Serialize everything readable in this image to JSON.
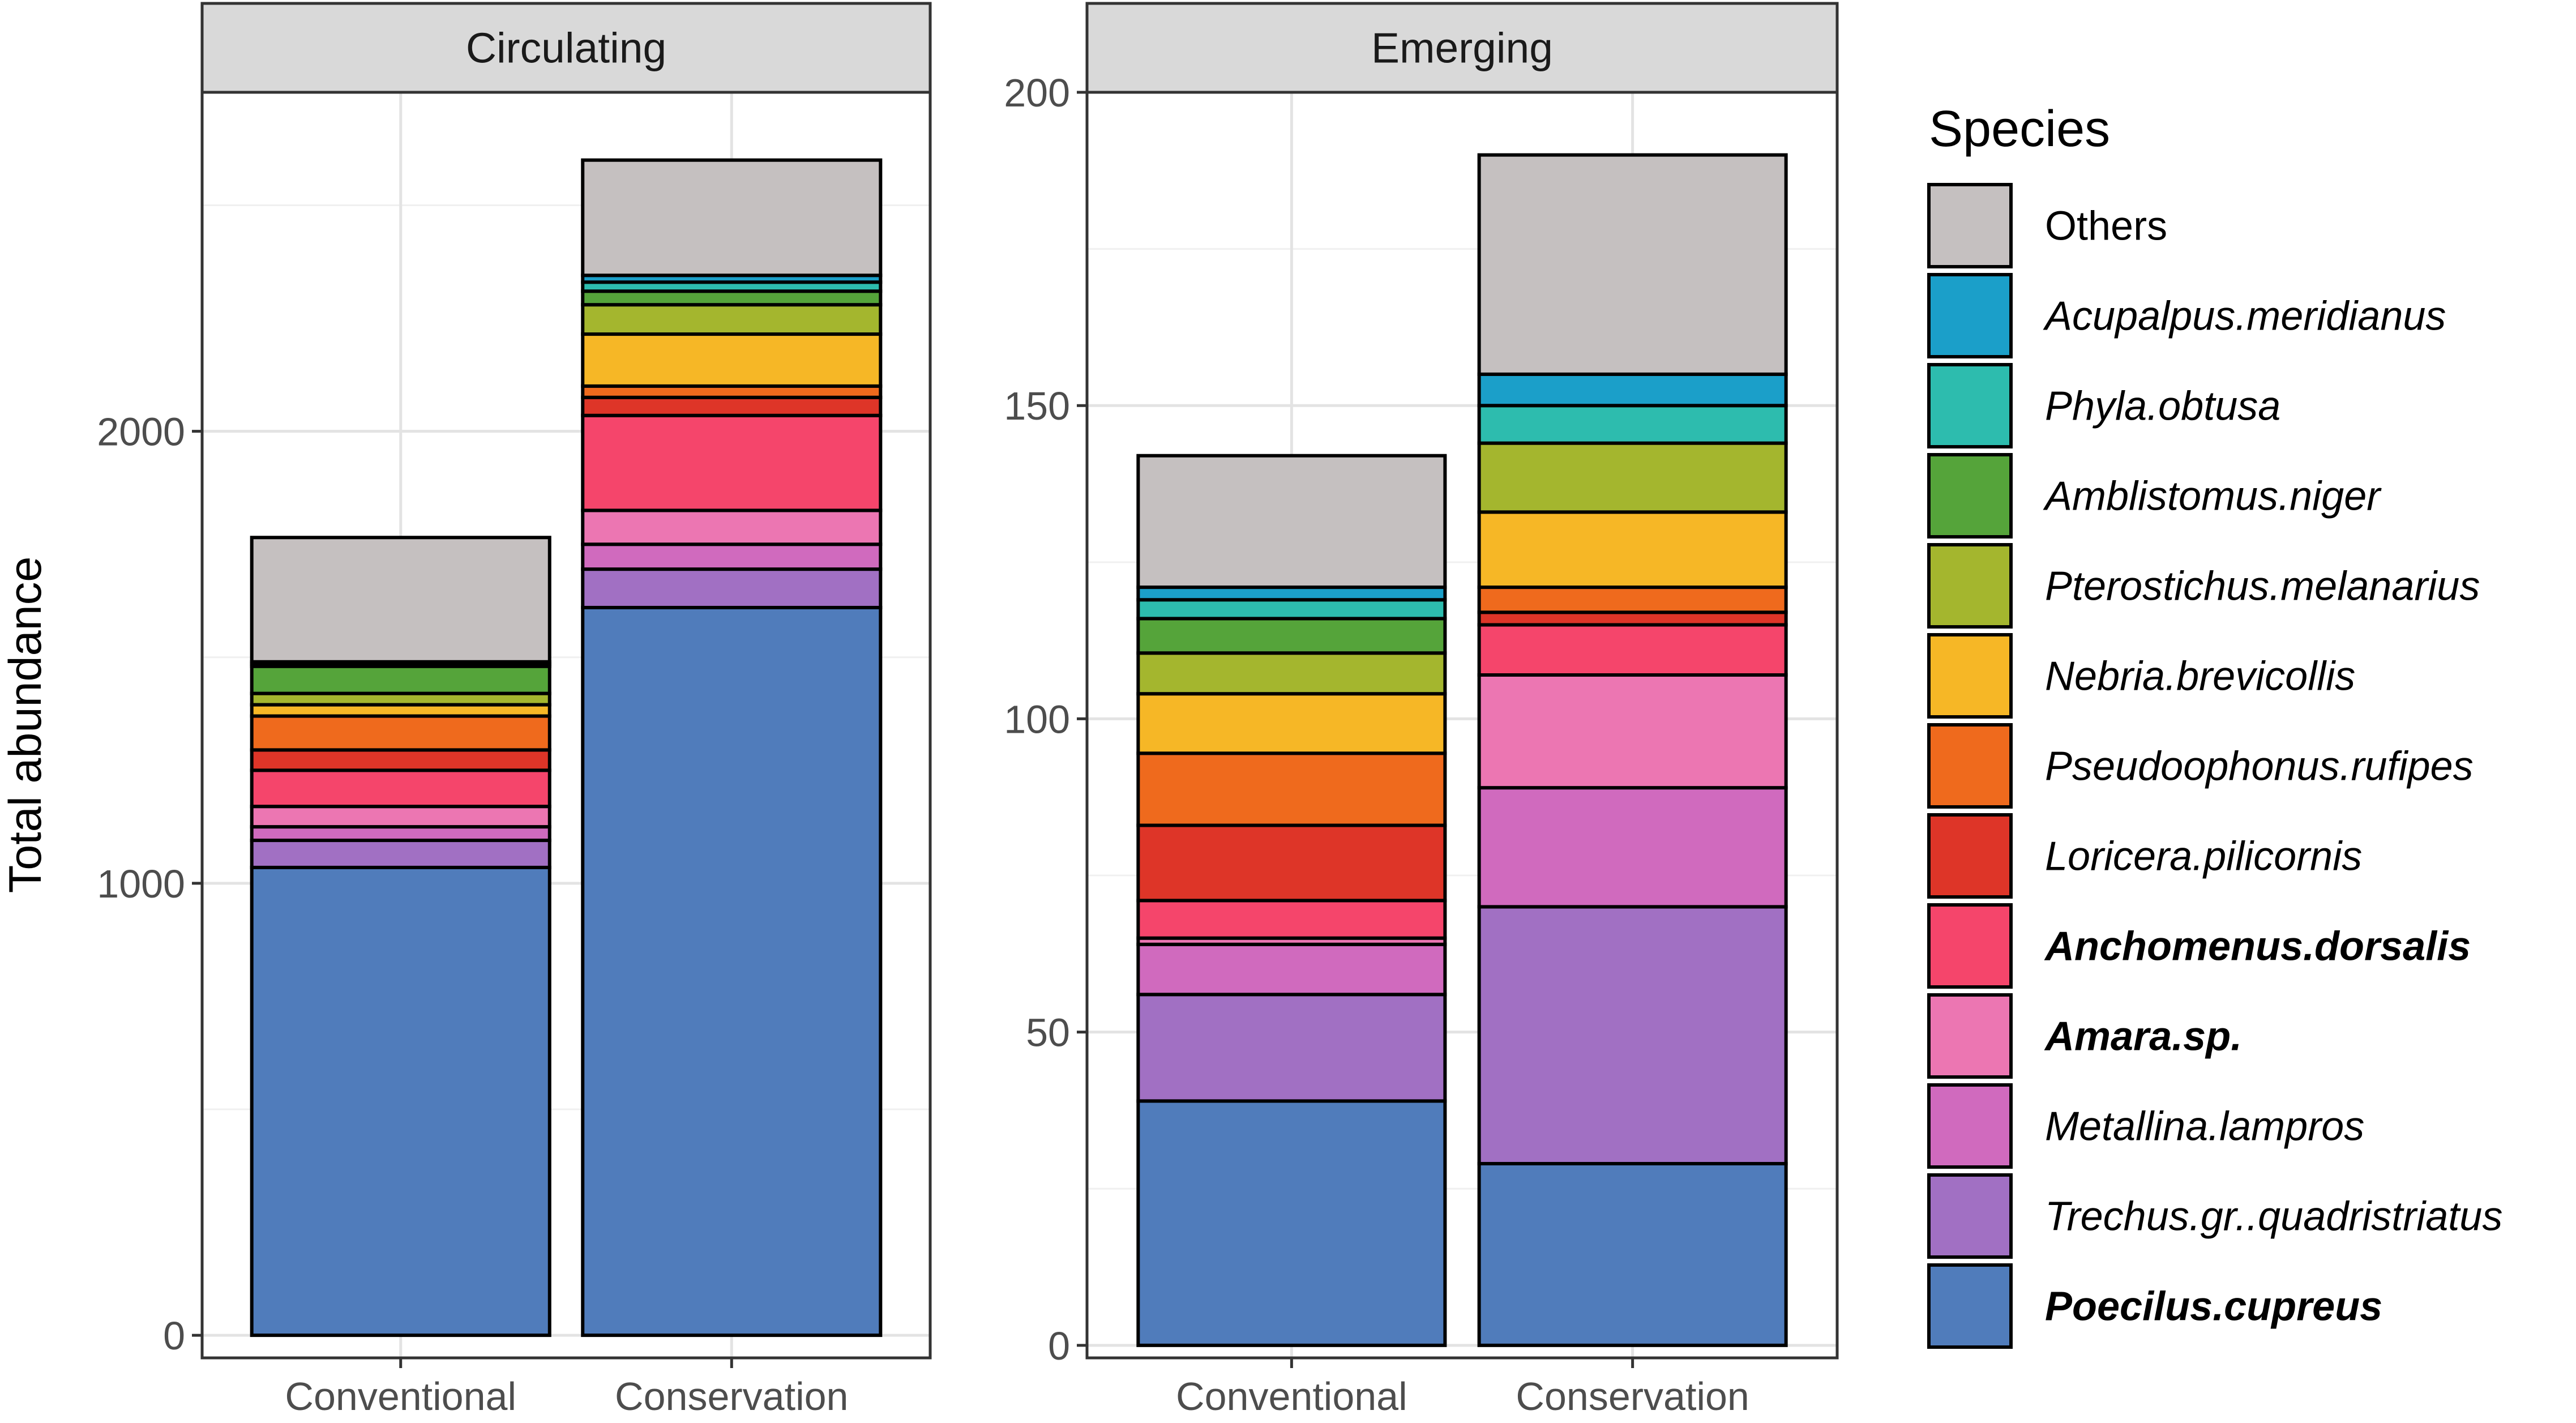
{
  "chart_data": {
    "type": "bar",
    "stacked": true,
    "ylabel": "Total abundance",
    "legend": {
      "title": "Species",
      "placement": "right",
      "entries": [
        {
          "name": "Others",
          "color": "#c5c0c0",
          "bold": false,
          "italic": false
        },
        {
          "name": "Acupalpus.meridianus",
          "color": "#1b9fc9",
          "bold": false,
          "italic": true
        },
        {
          "name": "Phyla.obtusa",
          "color": "#2dbcae",
          "bold": false,
          "italic": true
        },
        {
          "name": "Amblistomus.niger",
          "color": "#55a43a",
          "bold": false,
          "italic": true
        },
        {
          "name": "Pterostichus.melanarius",
          "color": "#a4b62e",
          "bold": false,
          "italic": true
        },
        {
          "name": "Nebria.brevicollis",
          "color": "#f6b726",
          "bold": false,
          "italic": true
        },
        {
          "name": "Pseudoophonus.rufipes",
          "color": "#ef6a1d",
          "bold": false,
          "italic": true
        },
        {
          "name": "Loricera.pilicornis",
          "color": "#de3528",
          "bold": false,
          "italic": true
        },
        {
          "name": "Anchomenus.dorsalis",
          "color": "#f5456b",
          "bold": true,
          "italic": true
        },
        {
          "name": "Amara.sp.",
          "color": "#ec76b2",
          "bold": true,
          "italic": true
        },
        {
          "name": "Metallina.lampros",
          "color": "#d06abe",
          "bold": false,
          "italic": true
        },
        {
          "name": "Trechus.gr..quadristriatus",
          "color": "#a170c3",
          "bold": false,
          "italic": true
        },
        {
          "name": "Poecilus.cupreus",
          "color": "#507cbb",
          "bold": true,
          "italic": true
        }
      ]
    },
    "panels": [
      {
        "strip": "Circulating",
        "categories": [
          "Conventional",
          "Conservation"
        ],
        "ylim": [
          -50,
          2750
        ],
        "yticks": [
          0,
          1000,
          2000
        ],
        "minor_gridlines": [
          500,
          1500,
          2500
        ],
        "series": [
          {
            "name": "Poecilus.cupreus",
            "values": [
              1035,
              1610
            ]
          },
          {
            "name": "Trechus.gr..quadristriatus",
            "values": [
              60,
              85
            ]
          },
          {
            "name": "Metallina.lampros",
            "values": [
              30,
              55
            ]
          },
          {
            "name": "Amara.sp.",
            "values": [
              45,
              75
            ]
          },
          {
            "name": "Anchomenus.dorsalis",
            "values": [
              80,
              210
            ]
          },
          {
            "name": "Loricera.pilicornis",
            "values": [
              45,
              40
            ]
          },
          {
            "name": "Pseudoophonus.rufipes",
            "values": [
              75,
              25
            ]
          },
          {
            "name": "Nebria.brevicollis",
            "values": [
              25,
              115
            ]
          },
          {
            "name": "Pterostichus.melanarius",
            "values": [
              25,
              65
            ]
          },
          {
            "name": "Amblistomus.niger",
            "values": [
              60,
              30
            ]
          },
          {
            "name": "Phyla.obtusa",
            "values": [
              5,
              20
            ]
          },
          {
            "name": "Acupalpus.meridianus",
            "values": [
              5,
              15
            ]
          },
          {
            "name": "Others",
            "values": [
              275,
              255
            ]
          }
        ]
      },
      {
        "strip": "Emerging",
        "categories": [
          "Conventional",
          "Conservation"
        ],
        "ylim": [
          -2,
          200
        ],
        "yticks": [
          0,
          50,
          100,
          150,
          200
        ],
        "minor_gridlines": [
          25,
          75,
          125,
          175
        ],
        "series": [
          {
            "name": "Poecilus.cupreus",
            "values": [
              39,
              29
            ]
          },
          {
            "name": "Trechus.gr..quadristriatus",
            "values": [
              17,
              41
            ]
          },
          {
            "name": "Metallina.lampros",
            "values": [
              8,
              19
            ]
          },
          {
            "name": "Amara.sp.",
            "values": [
              1,
              18
            ]
          },
          {
            "name": "Anchomenus.dorsalis",
            "values": [
              6,
              8
            ]
          },
          {
            "name": "Loricera.pilicornis",
            "values": [
              12,
              2
            ]
          },
          {
            "name": "Pseudoophonus.rufipes",
            "values": [
              11.5,
              4
            ]
          },
          {
            "name": "Nebria.brevicollis",
            "values": [
              9.5,
              12
            ]
          },
          {
            "name": "Pterostichus.melanarius",
            "values": [
              6.5,
              11
            ]
          },
          {
            "name": "Amblistomus.niger",
            "values": [
              5.5,
              0
            ]
          },
          {
            "name": "Phyla.obtusa",
            "values": [
              3,
              6
            ]
          },
          {
            "name": "Acupalpus.meridianus",
            "values": [
              2,
              5
            ]
          },
          {
            "name": "Others",
            "values": [
              21,
              35
            ]
          }
        ]
      }
    ]
  }
}
